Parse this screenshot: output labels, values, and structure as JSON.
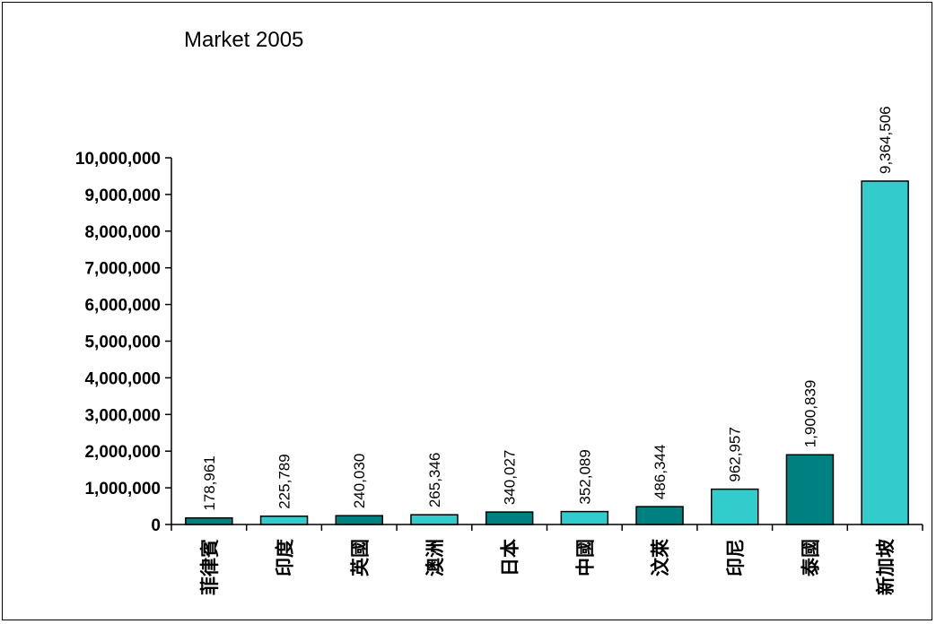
{
  "chart_data": {
    "type": "bar",
    "title": "Market 2005",
    "categories": [
      "菲律賓",
      "印度",
      "英國",
      "澳洲",
      "日本",
      "中國",
      "汶萊",
      "印尼",
      "泰國",
      "新加坡"
    ],
    "values": [
      178961,
      225789,
      240030,
      265346,
      340027,
      352089,
      486344,
      962957,
      1900839,
      9364506
    ],
    "data_labels": [
      "178,961",
      "225,789",
      "240,030",
      "265,346",
      "340,027",
      "352,089",
      "486,344",
      "962,957",
      "1,900,839",
      "9,364,506"
    ],
    "bar_colors": [
      "#008080",
      "#33CCCC",
      "#008080",
      "#33CCCC",
      "#008080",
      "#33CCCC",
      "#008080",
      "#33CCCC",
      "#008080",
      "#33CCCC"
    ],
    "yticks": [
      0,
      1000000,
      2000000,
      3000000,
      4000000,
      5000000,
      6000000,
      7000000,
      8000000,
      9000000,
      10000000
    ],
    "ytick_labels": [
      "0",
      "1,000,000",
      "2,000,000",
      "3,000,000",
      "4,000,000",
      "5,000,000",
      "6,000,000",
      "7,000,000",
      "8,000,000",
      "9,000,000",
      "10,000,000"
    ],
    "ylim": [
      0,
      10000000
    ],
    "xlabel": "",
    "ylabel": "",
    "grid": false,
    "legend": "none"
  }
}
